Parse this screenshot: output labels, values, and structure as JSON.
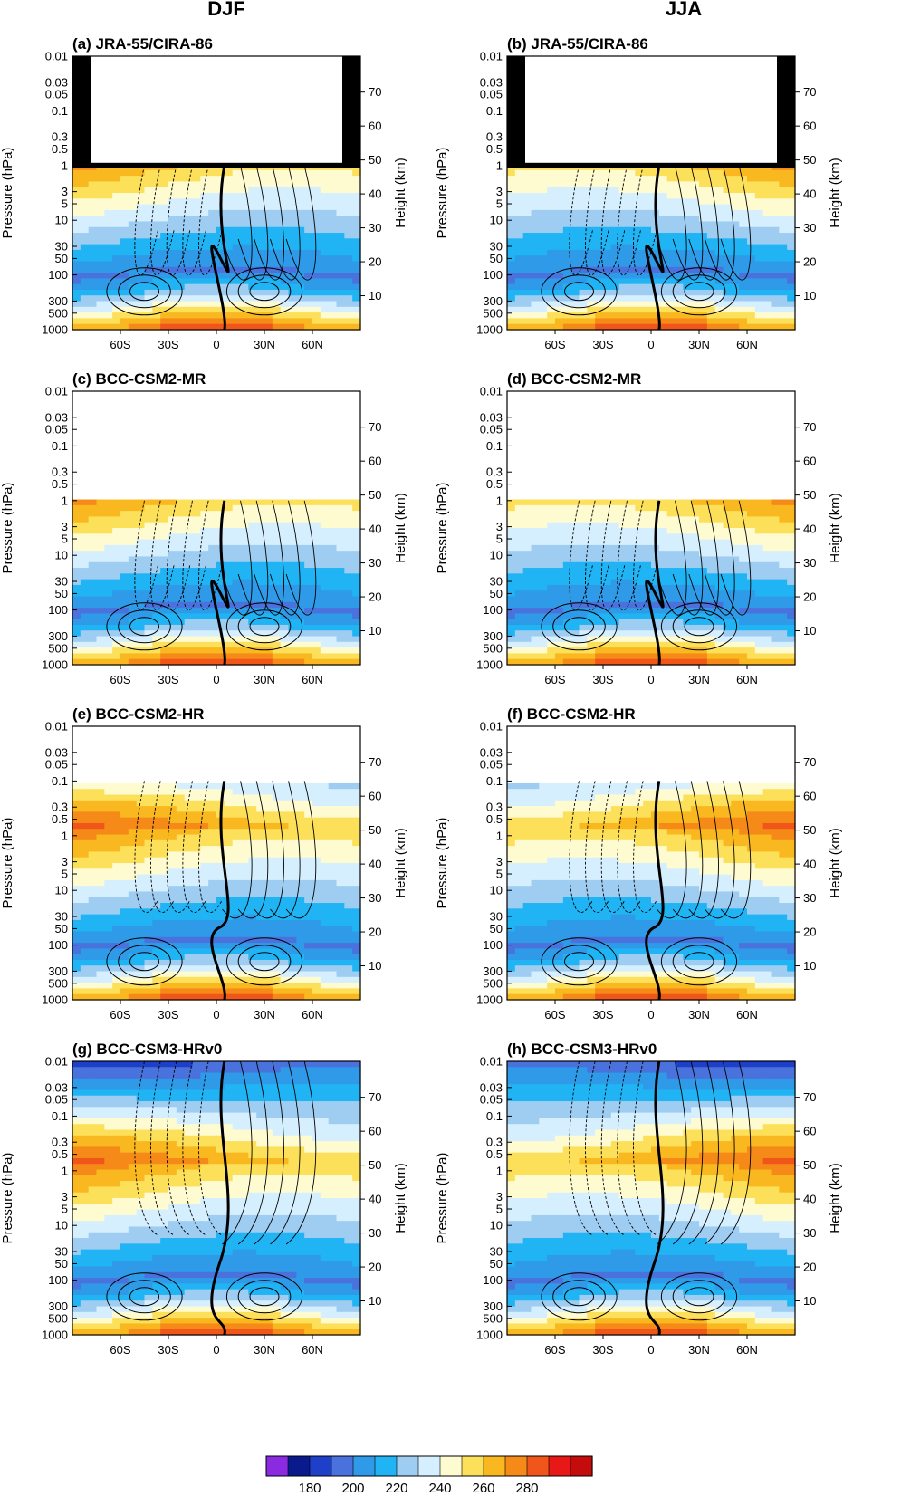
{
  "column_titles": [
    "DJF",
    "JJA"
  ],
  "colorbar": {
    "colors": [
      "#8a2be2",
      "#0a1a8c",
      "#1e3fc8",
      "#4a72dd",
      "#2e9ae8",
      "#20b4f4",
      "#9fcdf2",
      "#d6efff",
      "#fffbd0",
      "#fde05a",
      "#f9b820",
      "#f58a18",
      "#f0561a",
      "#e81818",
      "#c40c0c"
    ],
    "tick_labels": [
      "180",
      "200",
      "220",
      "240",
      "260",
      "280"
    ],
    "tick_positions": [
      2,
      4,
      6,
      8,
      10,
      12
    ]
  },
  "chart_data": [
    {
      "type": "heatmap",
      "title": "(a) JRA-55/CIRA-86",
      "season": "DJF",
      "ylabel": "Pressure (hPa)",
      "ylabel_right": "Height (km)",
      "x_ticks": [
        "60S",
        "30S",
        "0",
        "30N",
        "60N"
      ],
      "x_tick_values": [
        -60,
        -30,
        0,
        30,
        60
      ],
      "y_ticks": [
        "0.01",
        "0.03",
        "0.05",
        "0.1",
        "0.3",
        "0.5",
        "1",
        "3",
        "5",
        "10",
        "30",
        "50",
        "100",
        "300",
        "500",
        "1000"
      ],
      "y_ticks_right": [
        "10",
        "20",
        "30",
        "40",
        "50",
        "60",
        "70"
      ],
      "model_top_hpa": 1,
      "masked_upper": true
    },
    {
      "type": "heatmap",
      "title": "(b) JRA-55/CIRA-86",
      "season": "JJA",
      "ylabel": "Pressure (hPa)",
      "ylabel_right": "Height (km)",
      "x_ticks": [
        "60S",
        "30S",
        "0",
        "30N",
        "60N"
      ],
      "x_tick_values": [
        -60,
        -30,
        0,
        30,
        60
      ],
      "y_ticks": [
        "0.01",
        "0.03",
        "0.05",
        "0.1",
        "0.3",
        "0.5",
        "1",
        "3",
        "5",
        "10",
        "30",
        "50",
        "100",
        "300",
        "500",
        "1000"
      ],
      "y_ticks_right": [
        "10",
        "20",
        "30",
        "40",
        "50",
        "60",
        "70"
      ],
      "model_top_hpa": 1,
      "masked_upper": true
    },
    {
      "type": "heatmap",
      "title": "(c) BCC-CSM2-MR",
      "season": "DJF",
      "ylabel": "Pressure (hPa)",
      "ylabel_right": "Height (km)",
      "x_ticks": [
        "60S",
        "30S",
        "0",
        "30N",
        "60N"
      ],
      "x_tick_values": [
        -60,
        -30,
        0,
        30,
        60
      ],
      "y_ticks": [
        "0.01",
        "0.03",
        "0.05",
        "0.1",
        "0.3",
        "0.5",
        "1",
        "3",
        "5",
        "10",
        "30",
        "50",
        "100",
        "300",
        "500",
        "1000"
      ],
      "y_ticks_right": [
        "10",
        "20",
        "30",
        "40",
        "50",
        "60",
        "70"
      ],
      "model_top_hpa": 1
    },
    {
      "type": "heatmap",
      "title": "(d) BCC-CSM2-MR",
      "season": "JJA",
      "ylabel": "Pressure (hPa)",
      "ylabel_right": "Height (km)",
      "x_ticks": [
        "60S",
        "30S",
        "0",
        "30N",
        "60N"
      ],
      "x_tick_values": [
        -60,
        -30,
        0,
        30,
        60
      ],
      "y_ticks": [
        "0.01",
        "0.03",
        "0.05",
        "0.1",
        "0.3",
        "0.5",
        "1",
        "3",
        "5",
        "10",
        "30",
        "50",
        "100",
        "300",
        "500",
        "1000"
      ],
      "y_ticks_right": [
        "10",
        "20",
        "30",
        "40",
        "50",
        "60",
        "70"
      ],
      "model_top_hpa": 1
    },
    {
      "type": "heatmap",
      "title": "(e) BCC-CSM2-HR",
      "season": "DJF",
      "ylabel": "Pressure (hPa)",
      "ylabel_right": "Height (km)",
      "x_ticks": [
        "60S",
        "30S",
        "0",
        "30N",
        "60N"
      ],
      "x_tick_values": [
        -60,
        -30,
        0,
        30,
        60
      ],
      "y_ticks": [
        "0.01",
        "0.03",
        "0.05",
        "0.1",
        "0.3",
        "0.5",
        "1",
        "3",
        "5",
        "10",
        "30",
        "50",
        "100",
        "300",
        "500",
        "1000"
      ],
      "y_ticks_right": [
        "10",
        "20",
        "30",
        "40",
        "50",
        "60",
        "70"
      ],
      "model_top_hpa": 0.1
    },
    {
      "type": "heatmap",
      "title": "(f) BCC-CSM2-HR",
      "season": "JJA",
      "ylabel": "Pressure (hPa)",
      "ylabel_right": "Height (km)",
      "x_ticks": [
        "60S",
        "30S",
        "0",
        "30N",
        "60N"
      ],
      "x_tick_values": [
        -60,
        -30,
        0,
        30,
        60
      ],
      "y_ticks": [
        "0.01",
        "0.03",
        "0.05",
        "0.1",
        "0.3",
        "0.5",
        "1",
        "3",
        "5",
        "10",
        "30",
        "50",
        "100",
        "300",
        "500",
        "1000"
      ],
      "y_ticks_right": [
        "10",
        "20",
        "30",
        "40",
        "50",
        "60",
        "70"
      ],
      "model_top_hpa": 0.1
    },
    {
      "type": "heatmap",
      "title": "(g) BCC-CSM3-HRv0",
      "season": "DJF",
      "ylabel": "Pressure (hPa)",
      "ylabel_right": "Height (km)",
      "x_ticks": [
        "60S",
        "30S",
        "0",
        "30N",
        "60N"
      ],
      "x_tick_values": [
        -60,
        -30,
        0,
        30,
        60
      ],
      "y_ticks": [
        "0.01",
        "0.03",
        "0.05",
        "0.1",
        "0.3",
        "0.5",
        "1",
        "3",
        "5",
        "10",
        "30",
        "50",
        "100",
        "300",
        "500",
        "1000"
      ],
      "y_ticks_right": [
        "10",
        "20",
        "30",
        "40",
        "50",
        "60",
        "70"
      ],
      "model_top_hpa": 0.01
    },
    {
      "type": "heatmap",
      "title": "(h) BCC-CSM3-HRv0",
      "season": "JJA",
      "ylabel": "Pressure (hPa)",
      "ylabel_right": "Height (km)",
      "x_ticks": [
        "60S",
        "30S",
        "0",
        "30N",
        "60N"
      ],
      "x_tick_values": [
        -60,
        -30,
        0,
        30,
        60
      ],
      "y_ticks": [
        "0.01",
        "0.03",
        "0.05",
        "0.1",
        "0.3",
        "0.5",
        "1",
        "3",
        "5",
        "10",
        "30",
        "50",
        "100",
        "300",
        "500",
        "1000"
      ],
      "y_ticks_right": [
        "10",
        "20",
        "30",
        "40",
        "50",
        "60",
        "70"
      ],
      "model_top_hpa": 0.01
    }
  ]
}
